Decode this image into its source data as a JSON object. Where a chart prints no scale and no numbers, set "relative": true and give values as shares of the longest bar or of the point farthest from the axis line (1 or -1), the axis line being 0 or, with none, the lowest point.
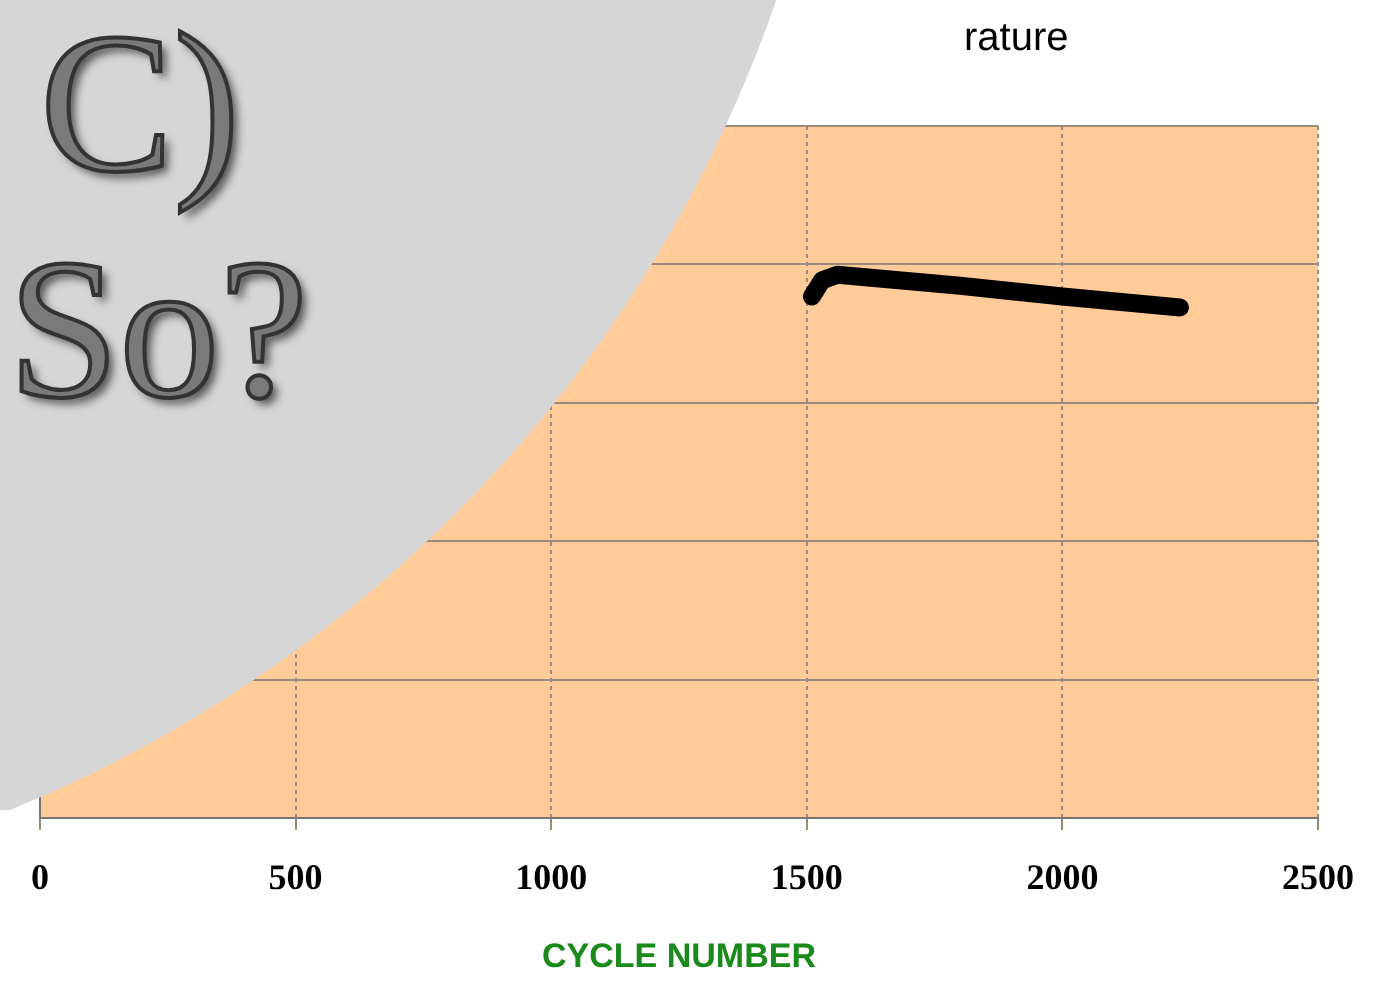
{
  "chart_data": {
    "type": "line",
    "title": "rature",
    "xlabel": "CYCLE NUMBER",
    "relative": true,
    "xlim": [
      0,
      2500
    ],
    "xticks": [
      0,
      500,
      1000,
      1500,
      2000,
      2500
    ],
    "grid": true,
    "legend": false,
    "marker": "none",
    "line_style": "solid",
    "series": [
      {
        "color": "#000000",
        "x": [
          1510,
          1530,
          1560,
          1800,
          2000,
          2230
        ],
        "values": [
          0.96,
          0.99,
          1,
          0.98,
          0.96,
          0.94
        ]
      }
    ],
    "annotations": [
      "C)",
      "So?"
    ]
  }
}
